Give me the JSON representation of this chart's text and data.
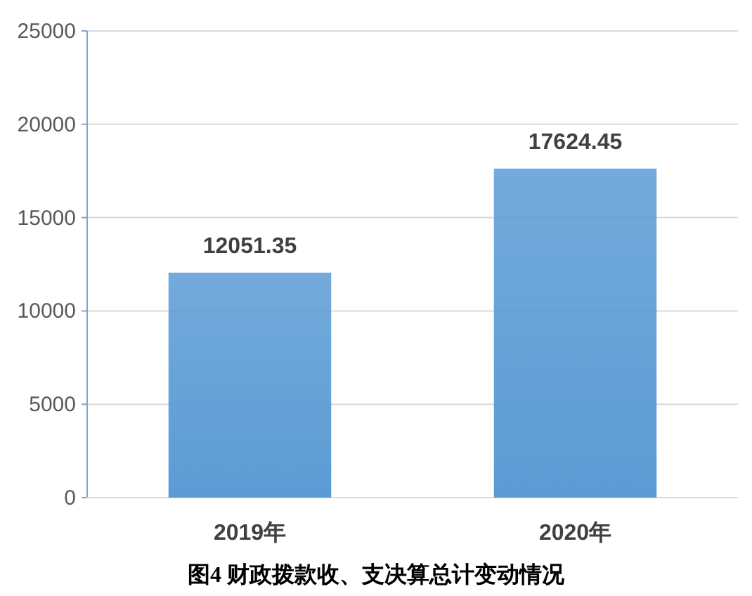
{
  "chart_data": {
    "type": "bar",
    "title": "图4 财政拨款收、支决算总计变动情况",
    "categories": [
      "2019年",
      "2020年"
    ],
    "values": [
      12051.35,
      17624.45
    ],
    "color": "#5b9bd5",
    "ylim": [
      0,
      25000
    ],
    "yticks": [
      0,
      5000,
      10000,
      15000,
      20000,
      25000
    ],
    "grid": "y",
    "data_labels": true
  }
}
